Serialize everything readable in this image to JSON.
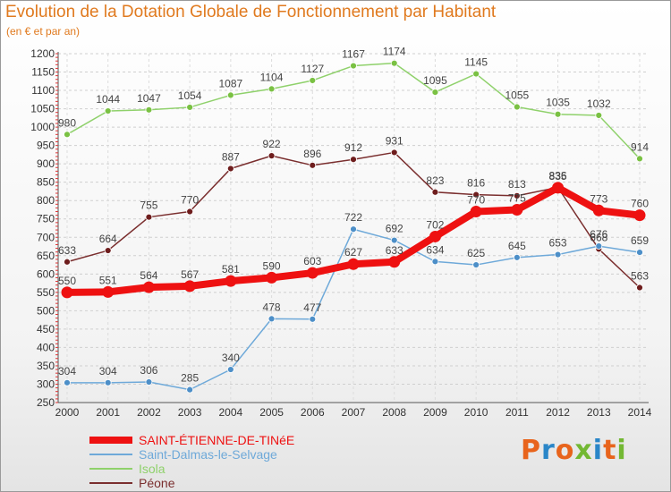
{
  "title": "Evolution de la Dotation Globale de Fonctionnement par Habitant",
  "subtitle": "(en € et par an)",
  "logo": {
    "text": "Proxiti",
    "colors": [
      "#e8641c",
      "#2a86c8",
      "#e8641c",
      "#73b833",
      "#2a86c8",
      "#e8641c",
      "#73b833"
    ]
  },
  "chart_data": {
    "type": "line",
    "title": "Evolution de la Dotation Globale de Fonctionnement par Habitant",
    "subtitle": "(en € et par an)",
    "x": [
      "2000",
      "2001",
      "2002",
      "2003",
      "2004",
      "2005",
      "2006",
      "2007",
      "2008",
      "2009",
      "2010",
      "2011",
      "2012",
      "2013",
      "2014"
    ],
    "ylim": [
      250,
      1200
    ],
    "yticks": [
      250,
      300,
      350,
      400,
      450,
      500,
      550,
      600,
      650,
      700,
      750,
      800,
      850,
      900,
      950,
      1000,
      1050,
      1100,
      1150,
      1200
    ],
    "grid": true,
    "legend_position": "bottom-left",
    "series": [
      {
        "name": "Isola",
        "color": "#8fd16b",
        "marker": "#7ac143",
        "values": [
          980,
          1044,
          1047,
          1054,
          1087,
          1104,
          1127,
          1167,
          1174,
          1095,
          1145,
          1055,
          1035,
          1032,
          914
        ]
      },
      {
        "name": "Péone",
        "color": "#7a2e2e",
        "marker": "#6e1d1d",
        "values": [
          633,
          664,
          755,
          770,
          887,
          922,
          896,
          912,
          931,
          823,
          816,
          813,
          836,
          668,
          563
        ]
      },
      {
        "name": "Saint-Dalmas-le-Selvage",
        "color": "#6ea9d9",
        "marker": "#4d8fc8",
        "values": [
          304,
          304,
          306,
          285,
          340,
          478,
          477,
          722,
          692,
          634,
          625,
          645,
          653,
          676,
          659
        ]
      },
      {
        "name": "SAINT-ÉTIENNE-DE-TINéE",
        "color": "#ee1111",
        "marker": "#ee1111",
        "values": [
          550,
          551,
          564,
          567,
          581,
          590,
          603,
          627,
          633,
          702,
          770,
          775,
          835,
          773,
          760
        ]
      }
    ],
    "legend": [
      {
        "name": "SAINT-ÉTIENNE-DE-TINéE",
        "color": "#ee1111"
      },
      {
        "name": "Saint-Dalmas-le-Selvage",
        "color": "#6ea9d9"
      },
      {
        "name": "Isola",
        "color": "#8fd16b"
      },
      {
        "name": "Péone",
        "color": "#7a2e2e"
      }
    ]
  }
}
